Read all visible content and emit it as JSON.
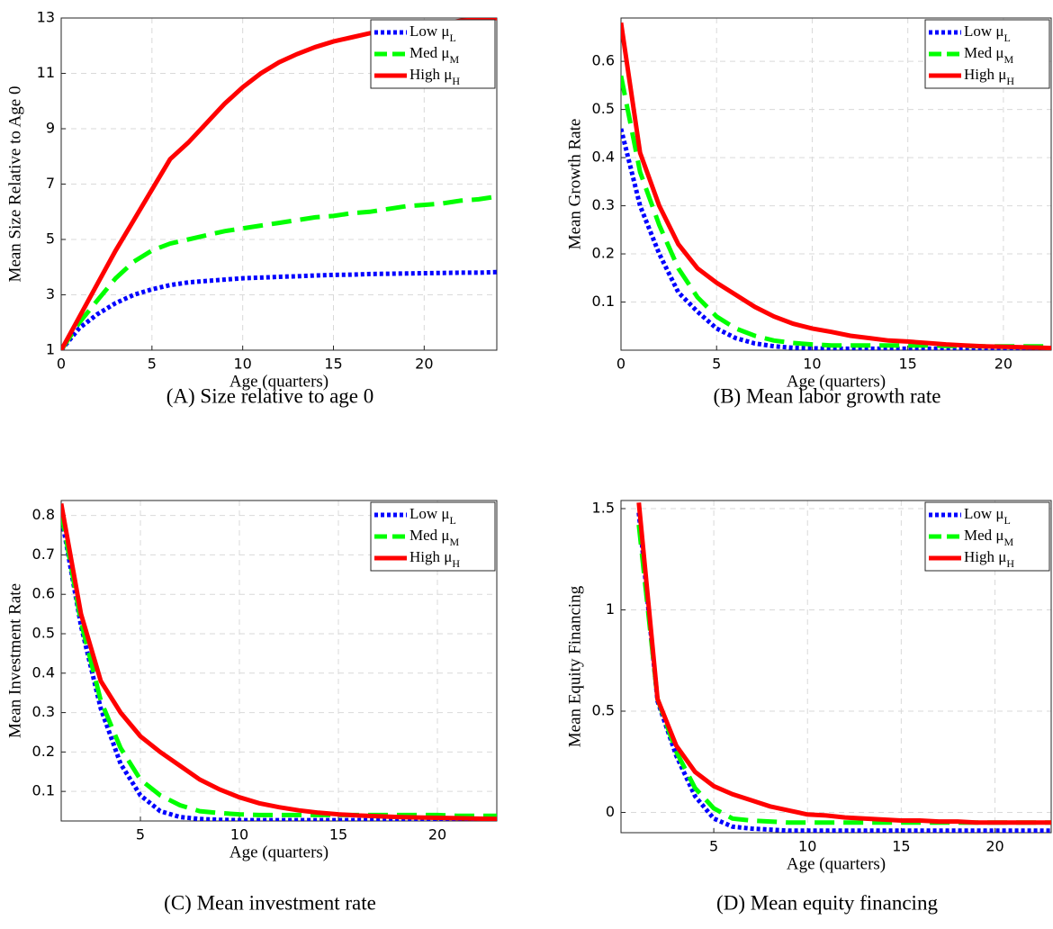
{
  "chart_data": [
    {
      "type": "line",
      "caption": "(A) Size relative to age 0",
      "xlabel": "Age (quarters)",
      "ylabel": "Mean Size Relative to Age 0",
      "x": [
        0,
        1,
        2,
        3,
        4,
        5,
        6,
        7,
        8,
        9,
        10,
        11,
        12,
        13,
        14,
        15,
        16,
        17,
        18,
        19,
        20,
        21,
        22,
        23,
        24
      ],
      "series": [
        {
          "name": "Low μL",
          "color": "#0000ff",
          "values": [
            1,
            1.8,
            2.3,
            2.7,
            3.0,
            3.2,
            3.35,
            3.45,
            3.5,
            3.55,
            3.6,
            3.62,
            3.65,
            3.67,
            3.7,
            3.72,
            3.73,
            3.75,
            3.76,
            3.77,
            3.78,
            3.79,
            3.8,
            3.8,
            3.82
          ]
        },
        {
          "name": "Med μM",
          "color": "#00ff00",
          "values": [
            1,
            2.0,
            2.8,
            3.6,
            4.2,
            4.6,
            4.85,
            5.0,
            5.15,
            5.3,
            5.4,
            5.5,
            5.6,
            5.7,
            5.8,
            5.85,
            5.95,
            6.0,
            6.1,
            6.2,
            6.25,
            6.3,
            6.4,
            6.45,
            6.55
          ]
        },
        {
          "name": "High μH",
          "color": "#ff0000",
          "values": [
            1,
            2.2,
            3.4,
            4.6,
            5.7,
            6.8,
            7.9,
            8.5,
            9.2,
            9.9,
            10.5,
            11.0,
            11.4,
            11.7,
            11.95,
            12.15,
            12.3,
            12.45,
            12.55,
            12.65,
            12.75,
            12.8,
            12.9,
            12.95,
            13
          ]
        }
      ],
      "xlim": [
        0,
        24
      ],
      "ylim": [
        1,
        13
      ],
      "xticks": [
        0,
        5,
        10,
        15,
        20
      ],
      "yticks": [
        1,
        3,
        5,
        7,
        9,
        11,
        13
      ],
      "grid": true,
      "legend": "upper-right"
    },
    {
      "type": "line",
      "caption": "(B) Mean labor growth rate",
      "xlabel": "Age (quarters)",
      "ylabel": "Mean Growth Rate",
      "x": [
        0,
        1,
        2,
        3,
        4,
        5,
        6,
        7,
        8,
        9,
        10,
        11,
        12,
        13,
        14,
        15,
        16,
        17,
        18,
        19,
        20,
        21,
        22,
        23,
        24
      ],
      "series": [
        {
          "name": "Low μL",
          "color": "#0000ff",
          "values": [
            0.46,
            0.3,
            0.2,
            0.12,
            0.08,
            0.045,
            0.025,
            0.014,
            0.008,
            0.005,
            0.004,
            0.003,
            0.003,
            0.003,
            0.003,
            0.003,
            0.003,
            0.003,
            0.003,
            0.003,
            0.003,
            0.003,
            0.003,
            0.003,
            0.003
          ]
        },
        {
          "name": "Med μM",
          "color": "#00ff00",
          "values": [
            0.57,
            0.37,
            0.26,
            0.17,
            0.11,
            0.07,
            0.045,
            0.03,
            0.02,
            0.015,
            0.012,
            0.01,
            0.01,
            0.01,
            0.01,
            0.01,
            0.01,
            0.009,
            0.009,
            0.008,
            0.008,
            0.008,
            0.008,
            0.008,
            0.008
          ]
        },
        {
          "name": "High μH",
          "color": "#ff0000",
          "values": [
            0.68,
            0.41,
            0.3,
            0.22,
            0.17,
            0.14,
            0.115,
            0.09,
            0.07,
            0.055,
            0.045,
            0.038,
            0.03,
            0.025,
            0.02,
            0.018,
            0.015,
            0.012,
            0.01,
            0.008,
            0.007,
            0.006,
            0.005,
            0.004,
            0.004
          ]
        }
      ],
      "xlim": [
        0,
        22.5
      ],
      "ylim": [
        0,
        0.69
      ],
      "xticks": [
        0,
        5,
        10,
        15,
        20
      ],
      "yticks": [
        0.1,
        0.2,
        0.3,
        0.4,
        0.5,
        0.6
      ],
      "grid": true,
      "legend": "upper-right"
    },
    {
      "type": "line",
      "caption": "(C) Mean investment rate",
      "xlabel": "Age (quarters)",
      "ylabel": "Mean Investment Rate",
      "x": [
        1,
        2,
        3,
        4,
        5,
        6,
        7,
        8,
        9,
        10,
        11,
        12,
        13,
        14,
        15,
        16,
        17,
        18,
        19,
        20,
        21,
        22,
        23
      ],
      "series": [
        {
          "name": "Low μL",
          "color": "#0000ff",
          "values": [
            0.8,
            0.52,
            0.31,
            0.17,
            0.09,
            0.05,
            0.035,
            0.03,
            0.028,
            0.027,
            0.027,
            0.027,
            0.027,
            0.027,
            0.027,
            0.027,
            0.027,
            0.027,
            0.027,
            0.027,
            0.027,
            0.027,
            0.027
          ]
        },
        {
          "name": "Med μM",
          "color": "#00ff00",
          "values": [
            0.81,
            0.53,
            0.33,
            0.21,
            0.13,
            0.09,
            0.065,
            0.05,
            0.045,
            0.042,
            0.04,
            0.04,
            0.04,
            0.04,
            0.04,
            0.04,
            0.04,
            0.04,
            0.04,
            0.04,
            0.038,
            0.038,
            0.038
          ]
        },
        {
          "name": "High μH",
          "color": "#ff0000",
          "values": [
            0.83,
            0.55,
            0.38,
            0.3,
            0.24,
            0.2,
            0.165,
            0.13,
            0.105,
            0.085,
            0.07,
            0.06,
            0.052,
            0.046,
            0.042,
            0.039,
            0.037,
            0.035,
            0.034,
            0.033,
            0.032,
            0.031,
            0.03
          ]
        }
      ],
      "xlim": [
        1,
        23
      ],
      "ylim": [
        0.025,
        0.838
      ],
      "xticks": [
        5,
        10,
        15,
        20
      ],
      "yticks": [
        0.1,
        0.2,
        0.3,
        0.4,
        0.5,
        0.6,
        0.7,
        0.8
      ],
      "grid": true,
      "legend": "upper-right"
    },
    {
      "type": "line",
      "caption": "(D) Mean equity financing",
      "xlabel": "Age (quarters)",
      "ylabel": "Mean Equity Financing",
      "x": [
        1,
        2,
        3,
        4,
        5,
        6,
        7,
        8,
        9,
        10,
        11,
        12,
        13,
        14,
        15,
        16,
        17,
        18,
        19,
        20,
        21,
        22,
        23
      ],
      "series": [
        {
          "name": "Low μL",
          "color": "#0000ff",
          "values": [
            1.48,
            0.55,
            0.28,
            0.08,
            -0.03,
            -0.07,
            -0.08,
            -0.085,
            -0.09,
            -0.09,
            -0.09,
            -0.09,
            -0.09,
            -0.09,
            -0.09,
            -0.09,
            -0.09,
            -0.09,
            -0.09,
            -0.09,
            -0.09,
            -0.09,
            -0.09
          ]
        },
        {
          "name": "Med μM",
          "color": "#00ff00",
          "values": [
            1.42,
            0.56,
            0.3,
            0.12,
            0.02,
            -0.03,
            -0.04,
            -0.045,
            -0.05,
            -0.05,
            -0.05,
            -0.05,
            -0.05,
            -0.05,
            -0.05,
            -0.05,
            -0.05,
            -0.05,
            -0.05,
            -0.05,
            -0.05,
            -0.05,
            -0.05
          ]
        },
        {
          "name": "High μH",
          "color": "#ff0000",
          "values": [
            1.53,
            0.56,
            0.33,
            0.2,
            0.13,
            0.09,
            0.06,
            0.03,
            0.01,
            -0.01,
            -0.015,
            -0.025,
            -0.03,
            -0.035,
            -0.04,
            -0.04,
            -0.045,
            -0.045,
            -0.05,
            -0.05,
            -0.05,
            -0.05,
            -0.05
          ]
        }
      ],
      "xlim": [
        0.05,
        23
      ],
      "ylim": [
        -0.1,
        1.54
      ],
      "xticks": [
        5,
        10,
        15,
        20
      ],
      "yticks": [
        0,
        0.5,
        1,
        1.5
      ],
      "grid": true,
      "legend": "upper-right"
    }
  ]
}
